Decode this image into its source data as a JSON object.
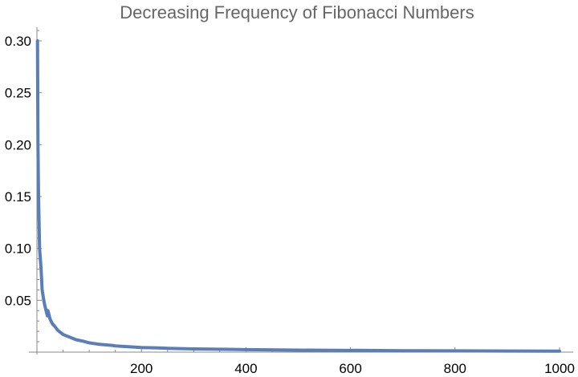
{
  "chart_data": {
    "type": "line",
    "title": "Decreasing Frequency of Fibonacci Numbers",
    "xlabel": "",
    "ylabel": "",
    "xlim": [
      0,
      1000
    ],
    "ylim": [
      0,
      0.31
    ],
    "x_ticks": [
      200,
      400,
      600,
      800,
      1000
    ],
    "x_tick_labels": [
      "200",
      "400",
      "600",
      "800",
      "1000"
    ],
    "y_ticks": [
      0.05,
      0.1,
      0.15,
      0.2,
      0.25,
      0.3
    ],
    "y_tick_labels": [
      "0.05",
      "0.10",
      "0.15",
      "0.20",
      "0.25",
      "0.30"
    ],
    "grid": false,
    "series": [
      {
        "color": "#5b7db8",
        "x": [
          1,
          2,
          3,
          5,
          8,
          10,
          13,
          15,
          20,
          21,
          25,
          30,
          34,
          40,
          50,
          55,
          60,
          75,
          89,
          100,
          120,
          144,
          150,
          200,
          233,
          250,
          300,
          377,
          400,
          500,
          600,
          610,
          700,
          800,
          900,
          987,
          1000
        ],
        "values": [
          0.3,
          0.2,
          0.15,
          0.1,
          0.08,
          0.06,
          0.05,
          0.045,
          0.035,
          0.04,
          0.032,
          0.027,
          0.025,
          0.021,
          0.017,
          0.016,
          0.015,
          0.012,
          0.0105,
          0.009,
          0.0075,
          0.0065,
          0.006,
          0.0045,
          0.0041,
          0.0037,
          0.0031,
          0.0026,
          0.0024,
          0.0019,
          0.0016,
          0.0017,
          0.0014,
          0.0012,
          0.0011,
          0.001,
          0.001
        ]
      }
    ]
  }
}
